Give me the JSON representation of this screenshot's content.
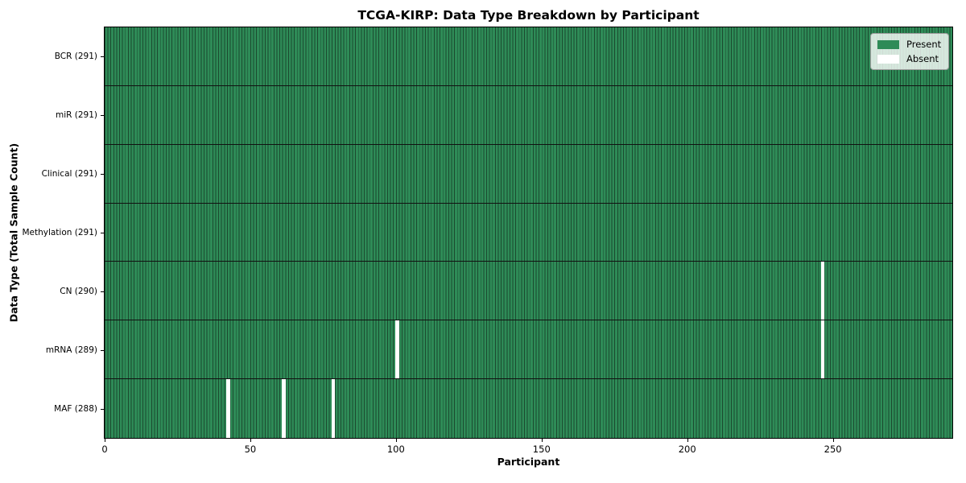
{
  "colors": {
    "present": "#2e8b57",
    "absent": "#ffffff",
    "cell_edge": "#1b4a2f",
    "row_separator": "#111111",
    "axis": "#000000",
    "legend_border": "#9a9a9a"
  },
  "chart_data": {
    "type": "heatmap",
    "title": "TCGA-KIRP: Data Type Breakdown by Participant",
    "xlabel": "Participant",
    "ylabel": "Data Type (Total Sample Count)",
    "n_participants": 291,
    "xlim": [
      0,
      291
    ],
    "x_ticks": [
      0,
      50,
      100,
      150,
      200,
      250
    ],
    "grid": false,
    "legend_position": "upper right",
    "rows": [
      {
        "data_type": "bcr",
        "label": "BCR (291)",
        "present_count": 291,
        "absent_participants": []
      },
      {
        "data_type": "mir",
        "label": "miR (291)",
        "present_count": 291,
        "absent_participants": []
      },
      {
        "data_type": "clinical",
        "label": "Clinical (291)",
        "present_count": 291,
        "absent_participants": []
      },
      {
        "data_type": "methylation",
        "label": "Methylation (291)",
        "present_count": 291,
        "absent_participants": []
      },
      {
        "data_type": "cn",
        "label": "CN (290)",
        "present_count": 290,
        "absent_participants": [
          246
        ]
      },
      {
        "data_type": "mrna",
        "label": "mRNA (289)",
        "present_count": 289,
        "absent_participants": [
          100,
          246
        ]
      },
      {
        "data_type": "maf",
        "label": "MAF (288)",
        "present_count": 288,
        "absent_participants": [
          42,
          61,
          78
        ]
      }
    ],
    "legend": [
      {
        "label": "Present",
        "color": "#2e8b57"
      },
      {
        "label": "Absent",
        "color": "#ffffff"
      }
    ]
  }
}
